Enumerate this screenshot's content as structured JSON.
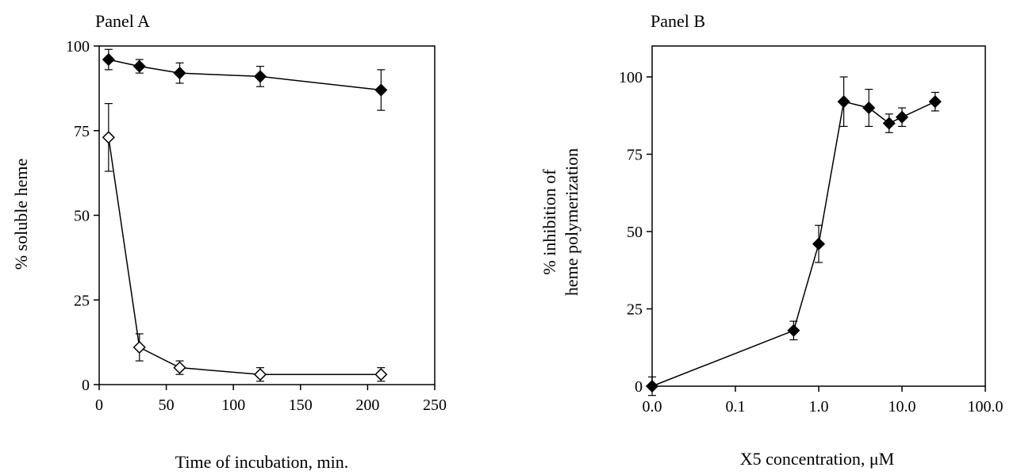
{
  "chart_data": [
    {
      "type": "line",
      "title": "Panel A",
      "xlabel": "Time of incubation, min.",
      "ylabel": "% soluble heme",
      "xlim": [
        0,
        250
      ],
      "ylim": [
        0,
        100
      ],
      "xticks": [
        "0",
        "50",
        "100",
        "150",
        "200",
        "250"
      ],
      "yticks": [
        "0",
        "25",
        "50",
        "75",
        "100"
      ],
      "grid": false,
      "series": [
        {
          "marker": "filled-diamond",
          "color": "#000000",
          "x": [
            7,
            30,
            60,
            120,
            210
          ],
          "y": [
            96,
            94,
            92,
            91,
            87
          ],
          "error": [
            3,
            2,
            3,
            3,
            6
          ]
        },
        {
          "marker": "open-diamond",
          "color": "#000000",
          "x": [
            7,
            30,
            60,
            120,
            210
          ],
          "y": [
            73,
            11,
            5,
            3,
            3
          ],
          "error": [
            10,
            4,
            2,
            2,
            2
          ]
        }
      ]
    },
    {
      "type": "line",
      "title": "Panel B",
      "xlabel": "X5 concentration, μM",
      "ylabel_lines": [
        "% inhibition of",
        "heme polymerization"
      ],
      "xscale": "log",
      "xlim": [
        0.01,
        100
      ],
      "ylim": [
        0,
        110
      ],
      "xticks": [
        "0.0",
        "0.1",
        "1.0",
        "10.0",
        "100.0"
      ],
      "yticks": [
        "0",
        "25",
        "50",
        "75",
        "100"
      ],
      "grid": false,
      "series": [
        {
          "marker": "filled-diamond",
          "color": "#000000",
          "x": [
            0.01,
            0.5,
            1.0,
            2.0,
            4.0,
            7.0,
            10.0,
            25.0
          ],
          "y": [
            0,
            18,
            46,
            92,
            90,
            85,
            87,
            92
          ],
          "error": [
            3,
            3,
            6,
            8,
            6,
            3,
            3,
            3
          ]
        }
      ]
    }
  ]
}
